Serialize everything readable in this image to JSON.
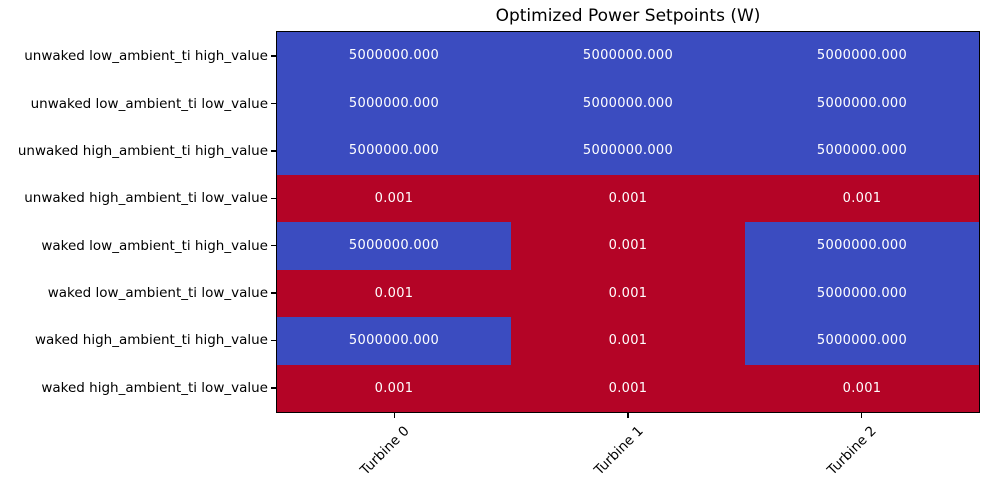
{
  "figure": {
    "title": "Optimized Power Setpoints (W)"
  },
  "chart_data": {
    "type": "heatmap",
    "title": "Optimized Power Setpoints (W)",
    "x_tick_labels": [
      "Turbine 0",
      "Turbine 1",
      "Turbine 2"
    ],
    "y_tick_labels": [
      "unwaked low_ambient_ti high_value",
      "unwaked low_ambient_ti low_value",
      "unwaked high_ambient_ti high_value",
      "unwaked high_ambient_ti low_value",
      "waked low_ambient_ti high_value",
      "waked low_ambient_ti low_value",
      "waked high_ambient_ti high_value",
      "waked high_ambient_ti low_value"
    ],
    "values": [
      [
        5000000.0,
        5000000.0,
        5000000.0
      ],
      [
        5000000.0,
        5000000.0,
        5000000.0
      ],
      [
        5000000.0,
        5000000.0,
        5000000.0
      ],
      [
        0.001,
        0.001,
        0.001
      ],
      [
        5000000.0,
        0.001,
        5000000.0
      ],
      [
        0.001,
        0.001,
        5000000.0
      ],
      [
        5000000.0,
        0.001,
        5000000.0
      ],
      [
        0.001,
        0.001,
        0.001
      ]
    ],
    "cell_labels": [
      [
        "5000000.000",
        "5000000.000",
        "5000000.000"
      ],
      [
        "5000000.000",
        "5000000.000",
        "5000000.000"
      ],
      [
        "5000000.000",
        "5000000.000",
        "5000000.000"
      ],
      [
        "0.001",
        "0.001",
        "0.001"
      ],
      [
        "5000000.000",
        "0.001",
        "5000000.000"
      ],
      [
        "0.001",
        "0.001",
        "5000000.000"
      ],
      [
        "5000000.000",
        "0.001",
        "5000000.000"
      ],
      [
        "0.001",
        "0.001",
        "0.001"
      ]
    ],
    "color_rule": {
      "threshold": 1,
      "above_color": "#3b4cc0",
      "below_color": "#b40426"
    },
    "cell_text_color": "#ffffff",
    "spine_color": "#000000",
    "grid": false,
    "legend": false
  }
}
